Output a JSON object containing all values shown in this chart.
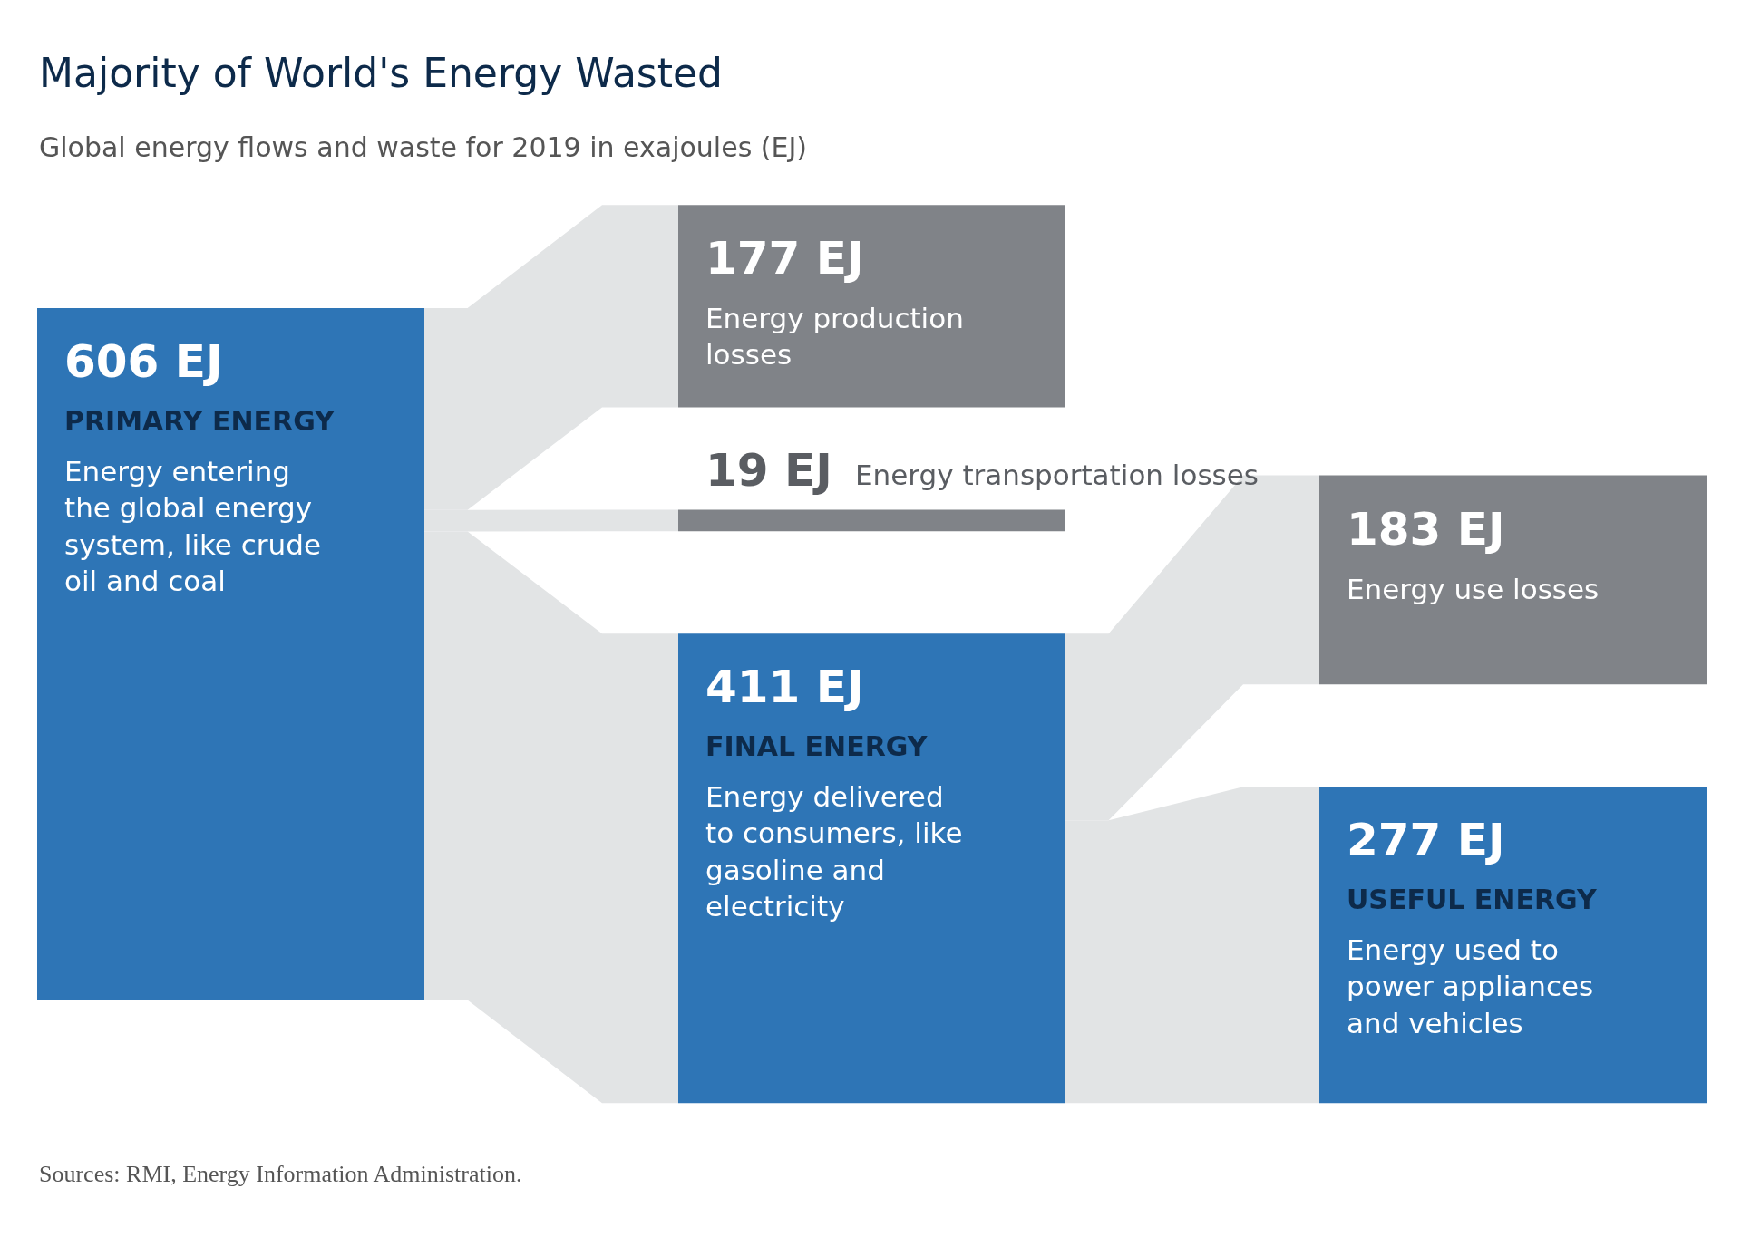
{
  "chart_data": {
    "type": "other",
    "title": "Majority of World's Energy Wasted",
    "subtitle": "Global energy flows and waste for 2019 in exajoules (EJ)",
    "categories": [
      "PRIMARY ENERGY",
      "Energy production losses",
      "Energy transportation losses",
      "FINAL ENERGY",
      "Energy use losses",
      "USEFUL ENERGY"
    ],
    "values": [
      606,
      177,
      19,
      411,
      183,
      277
    ],
    "value_labels": [
      "606 EJ",
      "177 EJ",
      "19 EJ",
      "411 EJ",
      "183 EJ",
      "277 EJ"
    ],
    "colors": [
      "#2e75b6",
      "#808388",
      "#808388",
      "#2e75b6",
      "#808388",
      "#2e75b6"
    ],
    "annotations": [
      {
        "text": "Energy entering the global energy system, like crude oil and coal",
        "x": "PRIMARY ENERGY"
      },
      {
        "text": "Energy delivered to consumers, like gasoline and electricity",
        "x": "FINAL ENERGY"
      },
      {
        "text": "Energy used to power appliances and vehicles",
        "x": "USEFUL ENERGY"
      },
      "Sources: RMI, Energy Information Administration."
    ]
  }
}
